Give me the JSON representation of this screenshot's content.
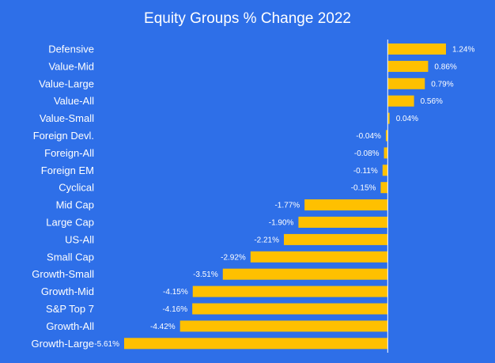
{
  "chart_data": {
    "type": "bar",
    "orientation": "horizontal",
    "title": "Equity Groups % Change 2022",
    "categories": [
      "Defensive",
      "Value-Mid",
      "Value-Large",
      "Value-All",
      "Value-Small",
      "Foreign Devl.",
      "Foreign-All",
      "Foreign EM",
      "Cyclical",
      "Mid Cap",
      "Large Cap",
      "US-All",
      "Small Cap",
      "Growth-Small",
      "Growth-Mid",
      "S&P Top 7",
      "Growth-All",
      "Growth-Large"
    ],
    "values": [
      1.24,
      0.86,
      0.79,
      0.56,
      0.04,
      -0.04,
      -0.08,
      -0.11,
      -0.15,
      -1.77,
      -1.9,
      -2.21,
      -2.92,
      -3.51,
      -4.15,
      -4.16,
      -4.42,
      -5.61
    ],
    "value_labels": [
      "1.24%",
      "0.86%",
      "0.79%",
      "0.56%",
      "0.04%",
      "-0.04%",
      "-0.08%",
      "-0.11%",
      "-0.15%",
      "-1.77%",
      "-1.90%",
      "-2.21%",
      "-2.92%",
      "-3.51%",
      "-4.15%",
      "-4.16%",
      "-4.42%",
      "-5.61%"
    ],
    "xlim": [
      -5.61,
      1.24
    ],
    "xlabel": "",
    "ylabel": "",
    "grid": false,
    "legend": "none",
    "colors": {
      "background": "#2e6fe8",
      "bar": "#ffc000",
      "text": "#ffffff",
      "axis": "#ffffff"
    }
  }
}
